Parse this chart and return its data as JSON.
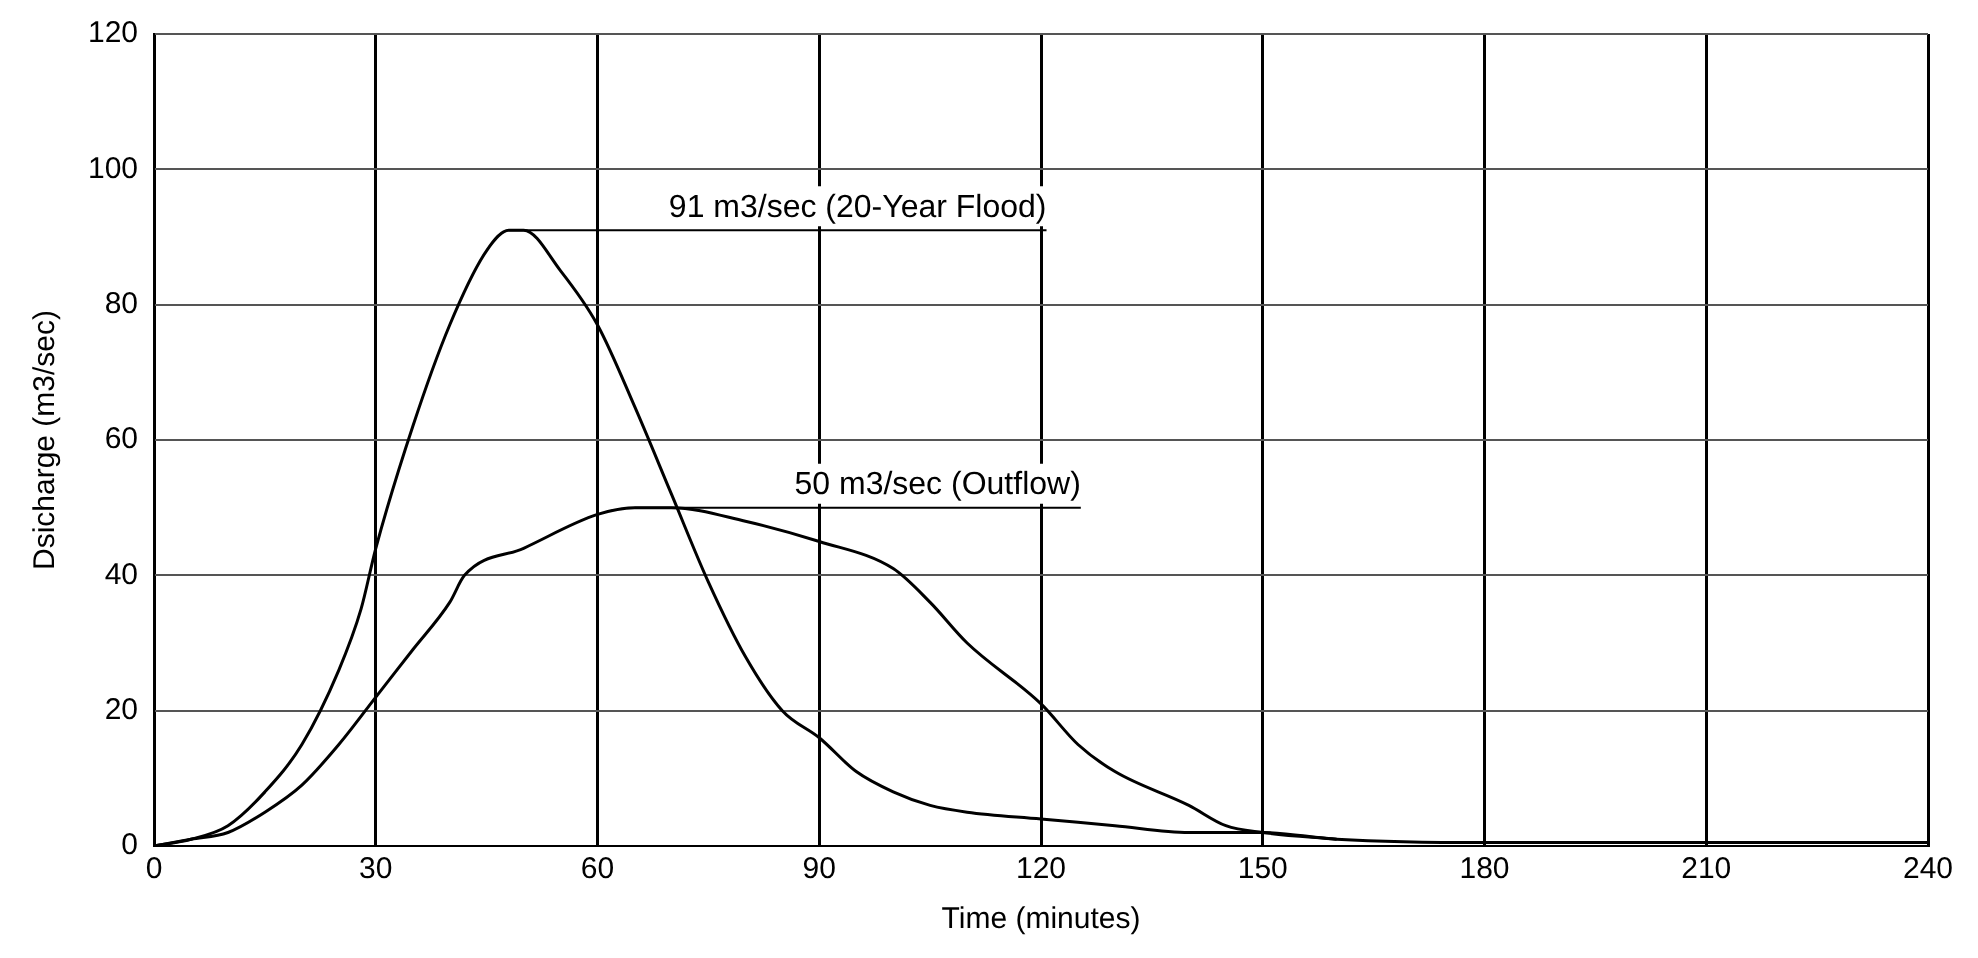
{
  "chart_data": {
    "type": "line",
    "xlabel": "Time (minutes)",
    "ylabel": "Dsicharge (m3/sec)",
    "xlim": [
      0,
      240
    ],
    "xticks": [
      0,
      30,
      60,
      90,
      120,
      150,
      180,
      210,
      240
    ],
    "ylim": [
      0,
      120
    ],
    "yticks": [
      0,
      20,
      40,
      60,
      80,
      100,
      120
    ],
    "grid": true,
    "legend": false,
    "marker": "none",
    "line_style": "solid",
    "series": [
      {
        "color": "#000000",
        "x": [
          0,
          5,
          10,
          15,
          20,
          25,
          28,
          30,
          35,
          40,
          45,
          48,
          50,
          55,
          60,
          65,
          70,
          75,
          80,
          85,
          90,
          95,
          100,
          105,
          110,
          120,
          130,
          140,
          150,
          160,
          180,
          210,
          240
        ],
        "values": [
          0,
          1,
          3,
          8,
          15,
          26,
          35,
          44,
          62,
          77,
          88,
          91,
          91,
          85,
          77,
          65,
          52,
          39,
          28,
          20,
          16,
          11,
          8,
          6,
          5,
          4,
          3,
          2,
          2,
          1,
          0.5,
          0.5,
          0.5
        ]
      },
      {
        "color": "#000000",
        "x": [
          0,
          5,
          10,
          15,
          20,
          25,
          30,
          35,
          40,
          42,
          50,
          60,
          65,
          70,
          80,
          90,
          100,
          105,
          110,
          120,
          125,
          130,
          140,
          145,
          150,
          160
        ],
        "values": [
          0,
          1,
          2,
          5,
          9,
          15,
          22,
          29,
          36,
          40,
          44,
          49,
          50,
          50,
          48,
          45,
          41,
          36,
          30,
          21,
          15,
          11,
          6,
          3,
          2,
          1
        ]
      }
    ],
    "annotations": [
      {
        "text": "91 m3/sec (20-Year Flood)",
        "x": 48,
        "y": 91
      },
      {
        "text": "50 m3/sec (Outflow)",
        "x": 65,
        "y": 50
      }
    ]
  }
}
